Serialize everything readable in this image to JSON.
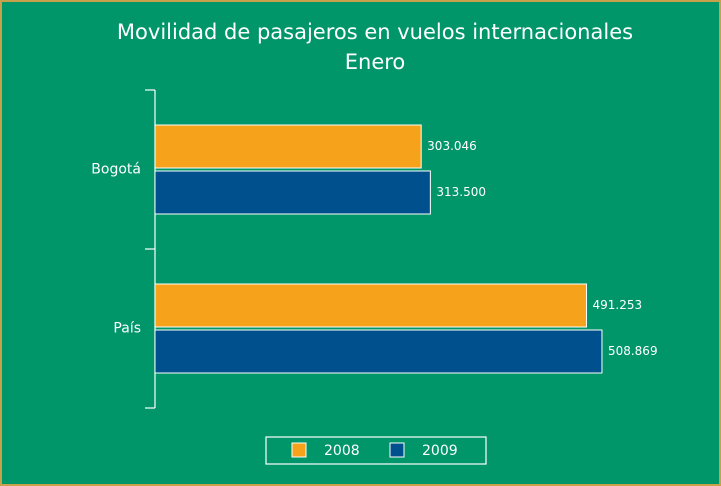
{
  "chart_data": {
    "type": "hbar",
    "title": "Movilidad de pasajeros en vuelos internacionales",
    "subtitle": "Enero",
    "categories": [
      "Bogotá",
      "País"
    ],
    "series": [
      {
        "name": "2008",
        "color": "#f7a21b",
        "values": [
          303046,
          491253
        ],
        "value_labels": [
          "303.046",
          "491.253"
        ]
      },
      {
        "name": "2009",
        "color": "#00508d",
        "values": [
          313500,
          508869
        ],
        "value_labels": [
          "313.500",
          "508.869"
        ]
      }
    ],
    "xlim": [
      0,
      600000
    ],
    "legend": "bottom"
  }
}
